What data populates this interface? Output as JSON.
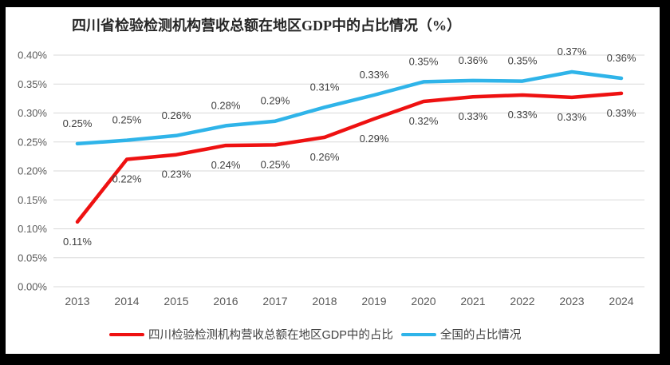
{
  "window": {
    "background_color": "#ffffff",
    "frame_color": "#000000"
  },
  "chart_data": {
    "type": "line",
    "title": "四川省检验检测机构营收总额在地区GDP中的占比情况（%）",
    "xlabel": "",
    "ylabel": "",
    "categories": [
      "2013",
      "2014",
      "2015",
      "2016",
      "2017",
      "2018",
      "2019",
      "2020",
      "2021",
      "2022",
      "2023",
      "2024"
    ],
    "y_ticks": [
      "0.00%",
      "0.05%",
      "0.10%",
      "0.15%",
      "0.20%",
      "0.25%",
      "0.30%",
      "0.35%",
      "0.40%"
    ],
    "ylim": [
      0,
      0.4
    ],
    "grid": true,
    "legend_position": "bottom",
    "series": [
      {
        "name": "四川检验检测机构营收总额在地区GDP中的占比",
        "color": "#ee1111",
        "label_position": "below",
        "values": [
          0.11,
          0.22,
          0.23,
          0.24,
          0.25,
          0.26,
          0.29,
          0.32,
          0.33,
          0.33,
          0.33,
          0.33
        ],
        "labels": [
          "0.11%",
          "0.22%",
          "0.23%",
          "0.24%",
          "0.25%",
          "0.26%",
          "0.29%",
          "0.32%",
          "0.33%",
          "0.33%",
          "0.33%",
          "0.33%"
        ],
        "plot_values": [
          0.112,
          0.22,
          0.228,
          0.244,
          0.245,
          0.258,
          0.29,
          0.32,
          0.328,
          0.331,
          0.327,
          0.334
        ]
      },
      {
        "name": "全国的占比情况",
        "color": "#2fb4e9",
        "label_position": "above",
        "values": [
          0.25,
          0.25,
          0.26,
          0.28,
          0.29,
          0.31,
          0.33,
          0.35,
          0.36,
          0.35,
          0.37,
          0.36
        ],
        "labels": [
          "0.25%",
          "0.25%",
          "0.26%",
          "0.28%",
          "0.29%",
          "0.31%",
          "0.33%",
          "0.35%",
          "0.36%",
          "0.35%",
          "0.37%",
          "0.36%"
        ],
        "plot_values": [
          0.247,
          0.253,
          0.261,
          0.278,
          0.286,
          0.31,
          0.331,
          0.354,
          0.356,
          0.355,
          0.371,
          0.36
        ]
      }
    ],
    "colors": {
      "grid": "#d9d9d9",
      "tick_text": "#595959",
      "data_label_text": "#404040",
      "title_text": "#262626"
    }
  }
}
